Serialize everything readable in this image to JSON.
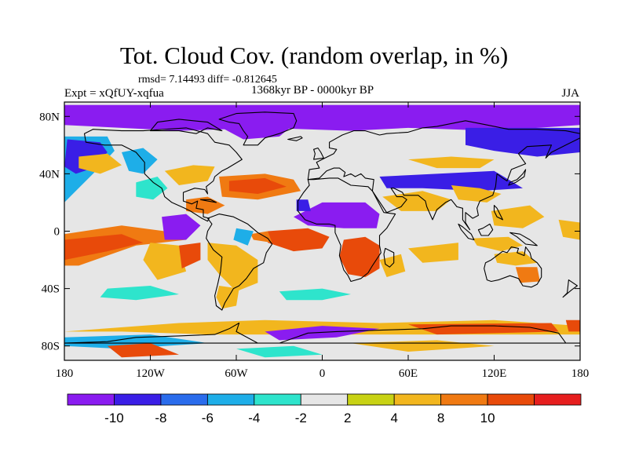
{
  "title": "Tot. Cloud Cov. (random overlap, in %)",
  "stats": "rmsd= 7.14493 diff= -0.812645",
  "experiment": "Expt = xQfUY-xqfua",
  "period": "1368kyr BP - 0000kyr BP",
  "season": "JJA",
  "lat_ticks": [
    {
      "label": "80N",
      "lat": 80
    },
    {
      "label": "40N",
      "lat": 40
    },
    {
      "label": "0",
      "lat": 0
    },
    {
      "label": "40S",
      "lat": -40
    },
    {
      "label": "80S",
      "lat": -80
    }
  ],
  "lon_ticks": [
    {
      "label": "180",
      "lon": -180
    },
    {
      "label": "120W",
      "lon": -120
    },
    {
      "label": "60W",
      "lon": -60
    },
    {
      "label": "0",
      "lon": 0
    },
    {
      "label": "60E",
      "lon": 60
    },
    {
      "label": "120E",
      "lon": 120
    },
    {
      "label": "180",
      "lon": 180
    }
  ],
  "colorbar": {
    "colors": [
      "#8a1cf0",
      "#3a1ee6",
      "#2a6cec",
      "#1eaee8",
      "#2ee4cc",
      "#e6e6e6",
      "#c8d214",
      "#f2b61e",
      "#f07a12",
      "#e84a0a",
      "#e61e1e"
    ],
    "labels": [
      "-10",
      "-8",
      "-6",
      "-4",
      "-2",
      "2",
      "4",
      "8",
      "10"
    ]
  },
  "chart_data": {
    "type": "heatmap",
    "variable": "Tot. Cloud Cov. (random overlap, in %)",
    "experiment": "Expt = xQfUY-xqfua",
    "period": "1368kyr BP - 0000kyr BP",
    "season": "JJA",
    "rmsd": 7.14493,
    "diff": -0.812645,
    "lon_range": [
      -180,
      180
    ],
    "lat_range": [
      -90,
      90
    ],
    "levels": [
      -10,
      -8,
      -6,
      -4,
      -2,
      2,
      4,
      8,
      10
    ],
    "regions": [
      {
        "name": "arctic-decrease",
        "lon": [
          -180,
          180
        ],
        "lat": [
          60,
          88
        ],
        "value": -12
      },
      {
        "name": "east-siberia-decrease",
        "lon": [
          100,
          180
        ],
        "lat": [
          50,
          80
        ],
        "value": -10
      },
      {
        "name": "north-pacific-decrease",
        "lon": [
          -180,
          -150
        ],
        "lat": [
          20,
          60
        ],
        "value": -9
      },
      {
        "name": "north-africa-decrease",
        "lon": [
          -10,
          40
        ],
        "lat": [
          2,
          20
        ],
        "value": -12
      },
      {
        "name": "east-pacific-decrease",
        "lon": [
          -110,
          -95
        ],
        "lat": [
          -5,
          10
        ],
        "value": -12
      },
      {
        "name": "tropical-pacific-increase",
        "lon": [
          -180,
          -130
        ],
        "lat": [
          -22,
          0
        ],
        "value": 12
      },
      {
        "name": "equatorial-atlantic-increase",
        "lon": [
          -35,
          0
        ],
        "lat": [
          -12,
          2
        ],
        "value": 12
      },
      {
        "name": "subtropical-atlantic-increase",
        "lon": [
          -70,
          -20
        ],
        "lat": [
          22,
          36
        ],
        "value": 12
      },
      {
        "name": "southern-africa-increase",
        "lon": [
          15,
          40
        ],
        "lat": [
          -30,
          -8
        ],
        "value": 12
      },
      {
        "name": "southeast-australia-increase",
        "lon": [
          135,
          150
        ],
        "lat": [
          -35,
          -25
        ],
        "value": 9
      },
      {
        "name": "asia-decrease-band",
        "lon": [
          40,
          130
        ],
        "lat": [
          28,
          42
        ],
        "value": -9
      },
      {
        "name": "south-america-increase",
        "lon": [
          -75,
          -45
        ],
        "lat": [
          -38,
          -12
        ],
        "value": 7
      },
      {
        "name": "antarctic-coast-increase",
        "lon": [
          60,
          160
        ],
        "lat": [
          -72,
          -64
        ],
        "value": 10
      }
    ]
  }
}
